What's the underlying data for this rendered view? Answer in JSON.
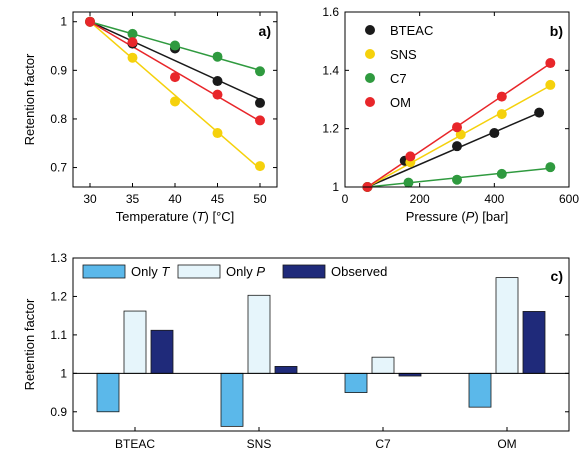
{
  "chart_data": [
    {
      "panel": "a)",
      "type": "line",
      "xlabel": "Temperature (T) [°C]",
      "xlabel_parts": [
        "Temperature (",
        "T",
        ") [°C]"
      ],
      "ylabel": "Retention factor",
      "xlim": [
        28,
        52
      ],
      "ylim": [
        0.66,
        1.02
      ],
      "xticks": [
        30,
        35,
        40,
        45,
        50
      ],
      "yticks": [
        0.7,
        0.8,
        0.9,
        1
      ],
      "ytick_labels": [
        "0.7",
        "0.8",
        "0.9",
        "1"
      ],
      "x": [
        30,
        35,
        40,
        45,
        50
      ],
      "series": [
        {
          "name": "BTEAC",
          "color": "#1a1a1a",
          "values": [
            1.0,
            0.955,
            0.945,
            0.878,
            0.833
          ]
        },
        {
          "name": "SNS",
          "color": "#f5d10c",
          "values": [
            1.0,
            0.926,
            0.836,
            0.771,
            0.703
          ]
        },
        {
          "name": "C7",
          "color": "#2f9a3f",
          "values": [
            1.0,
            0.975,
            0.951,
            0.928,
            0.898
          ]
        },
        {
          "name": "OM",
          "color": "#e8262a",
          "values": [
            1.0,
            0.958,
            0.886,
            0.85,
            0.797
          ]
        }
      ]
    },
    {
      "panel": "b)",
      "type": "line",
      "xlabel": "Pressure (P) [bar]",
      "xlabel_parts": [
        "Pressure (",
        "P",
        ") [bar]"
      ],
      "xlim": [
        0,
        600
      ],
      "ylim": [
        1.0,
        1.6
      ],
      "xticks": [
        0,
        200,
        400,
        600
      ],
      "yticks": [
        1,
        1.2,
        1.4,
        1.6
      ],
      "ytick_labels": [
        "1",
        "1.2",
        "1.4",
        "1.6"
      ],
      "legend_position": "top-left",
      "series": [
        {
          "name": "BTEAC",
          "color": "#1a1a1a",
          "x": [
            60,
            160,
            300,
            400,
            520
          ],
          "values": [
            1.0,
            1.09,
            1.14,
            1.185,
            1.255
          ]
        },
        {
          "name": "SNS",
          "color": "#f5d10c",
          "x": [
            60,
            175,
            310,
            420,
            550
          ],
          "values": [
            1.0,
            1.085,
            1.18,
            1.25,
            1.35
          ]
        },
        {
          "name": "C7",
          "color": "#2f9a3f",
          "x": [
            60,
            170,
            300,
            420,
            550
          ],
          "values": [
            1.0,
            1.015,
            1.025,
            1.045,
            1.068
          ]
        },
        {
          "name": "OM",
          "color": "#e8262a",
          "x": [
            60,
            175,
            300,
            420,
            550
          ],
          "values": [
            1.0,
            1.105,
            1.205,
            1.31,
            1.425
          ]
        }
      ]
    },
    {
      "panel": "c)",
      "type": "bar",
      "ylabel": "Retention factor",
      "ylim": [
        0.85,
        1.3
      ],
      "yticks": [
        0.9,
        1,
        1.1,
        1.2,
        1.3
      ],
      "ytick_labels": [
        "0.9",
        "1",
        "1.1",
        "1.2",
        "1.3"
      ],
      "baseline": 1,
      "categories": [
        "BTEAC",
        "SNS",
        "C7",
        "OM"
      ],
      "legend_position": "top-left",
      "series": [
        {
          "name": "Only T",
          "name_parts": [
            "Only ",
            "T"
          ],
          "color": "#5bb8ea",
          "values": [
            0.9,
            0.862,
            0.95,
            0.912
          ]
        },
        {
          "name": "Only P",
          "name_parts": [
            "Only ",
            "P"
          ],
          "color": "#e6f5fb",
          "values": [
            1.162,
            1.203,
            1.042,
            1.249
          ]
        },
        {
          "name": "Observed",
          "name_parts": [
            "Observed",
            ""
          ],
          "color": "#1f2a7a",
          "values": [
            1.112,
            1.018,
            0.993,
            1.161
          ]
        }
      ]
    }
  ]
}
